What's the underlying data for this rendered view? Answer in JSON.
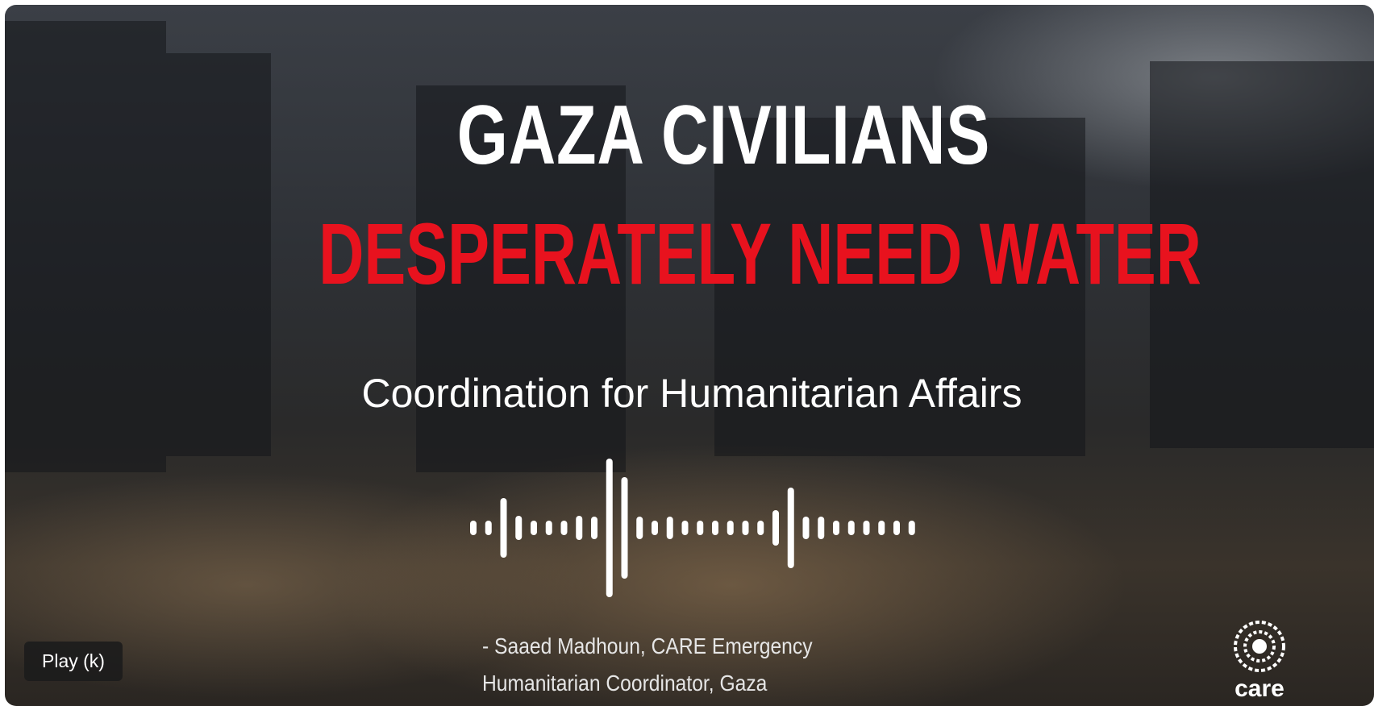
{
  "video": {
    "headline_line1": "GAZA CIVILIANS",
    "headline_line2": "DESPERATELY NEED WATER",
    "subtitle": "Coordination for Humanitarian Affairs",
    "quote_line1": "- Saaed Madhoun, CARE Emergency",
    "quote_line2": "Humanitarian Coordinator, Gaza",
    "logo_text": "care",
    "headline_color": "#ffffff",
    "accent_color": "#e8121e"
  },
  "tooltip": {
    "label": "Play (k)"
  },
  "icons": {
    "waveform": "audio-waveform-icon",
    "logo": "care-logo"
  }
}
